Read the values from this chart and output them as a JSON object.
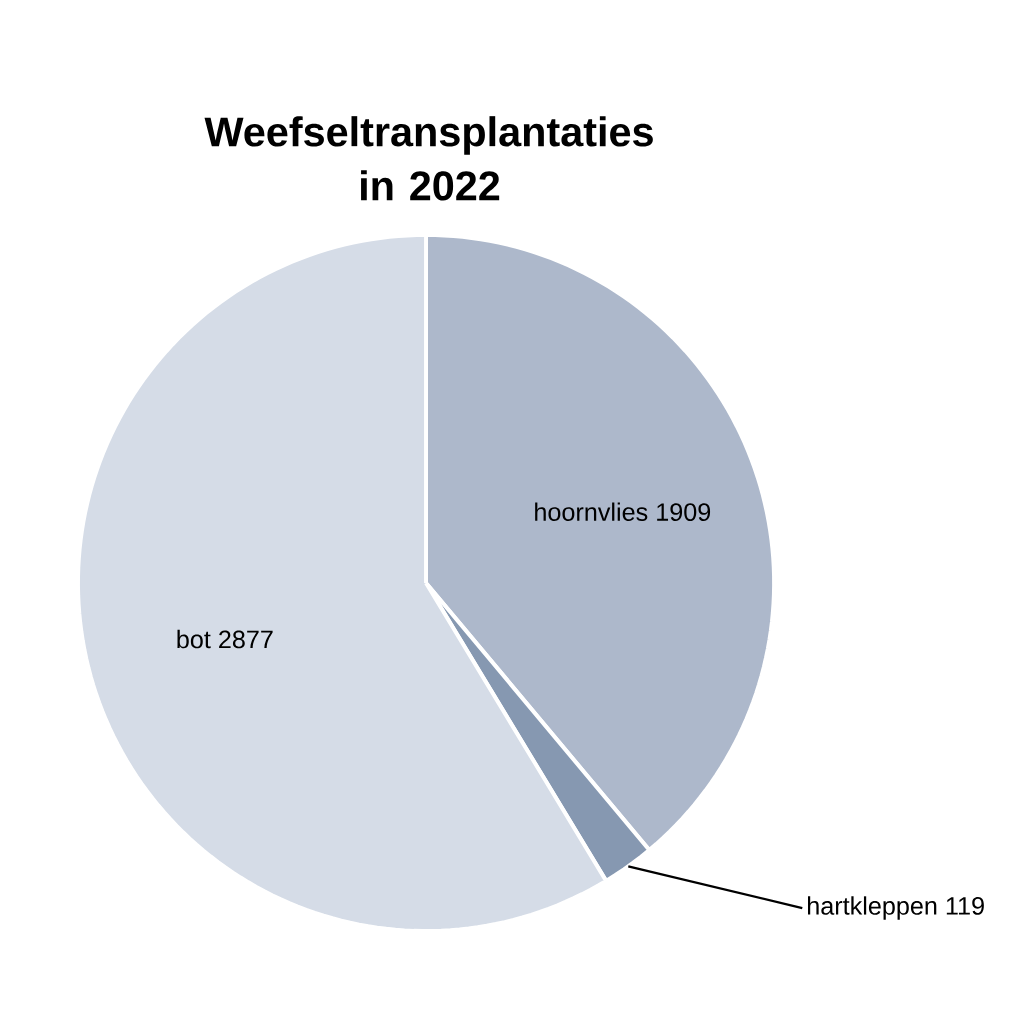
{
  "chart_data": {
    "type": "pie",
    "title": "Weefseltransplantaties in 2022",
    "categories": [
      "hoornvlies",
      "hartkleppen",
      "bot"
    ],
    "values": [
      1909,
      119,
      2877
    ],
    "colors": [
      "#adb8cb",
      "#8698b1",
      "#d5dce7"
    ],
    "data_labels": true
  }
}
